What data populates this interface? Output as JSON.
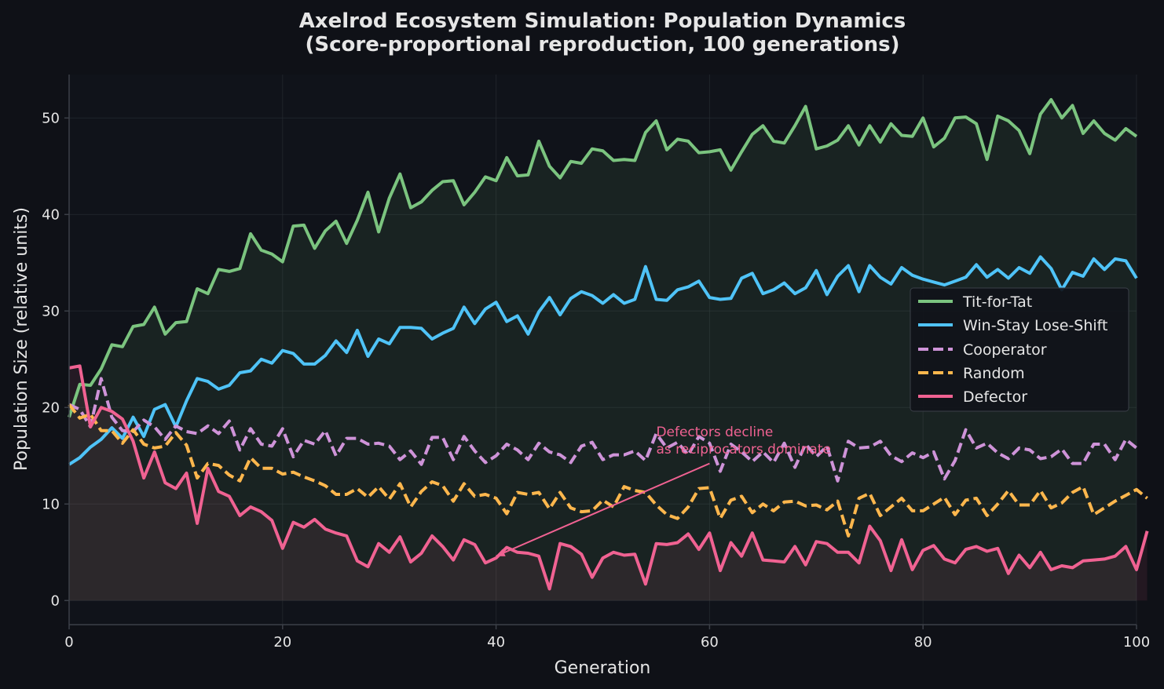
{
  "colors": {
    "background": "#0f1117",
    "plot_background": "#10131a",
    "grid": "#2a2e36",
    "axis": "#3c4048",
    "text": "#e6e6e6",
    "tft": "#7bc47f",
    "wsls": "#4fc3f7",
    "cooperator": "#ce93d8",
    "random": "#ffb74d",
    "defector": "#f06292"
  },
  "chart_data": {
    "type": "line",
    "title": "Axelrod Ecosystem Simulation: Population Dynamics",
    "subtitle": "(Score-proportional reproduction, 100 generations)",
    "xlabel": "Generation",
    "ylabel": "Population Size (relative units)",
    "xlim": [
      0,
      100
    ],
    "ylim": [
      -2.5,
      54.5
    ],
    "xticks": [
      0,
      20,
      40,
      60,
      80,
      100
    ],
    "yticks": [
      0,
      10,
      20,
      30,
      40,
      50
    ],
    "grid": true,
    "legend_position": "center-right",
    "annotation": {
      "text_lines": [
        "Defectors decline",
        "as reciprocators dominate"
      ],
      "text_at": [
        55,
        17
      ],
      "arrow_to": [
        40,
        4.6
      ],
      "arrow_from": [
        60,
        14.2
      ]
    },
    "series": [
      {
        "name": "Tit-for-Tat",
        "style": "solid",
        "color": "#7bc47f",
        "fill": true,
        "values": [
          19.0,
          22.4,
          22.3,
          24.0,
          26.5,
          26.3,
          28.4,
          28.6,
          30.4,
          27.6,
          28.8,
          28.9,
          32.3,
          31.8,
          34.3,
          34.1,
          34.4,
          38.0,
          36.3,
          35.9,
          35.1,
          38.8,
          38.9,
          36.5,
          38.3,
          39.3,
          37.0,
          39.4,
          42.3,
          38.2,
          41.7,
          44.2,
          40.7,
          41.3,
          42.5,
          43.4,
          43.5,
          41.0,
          42.3,
          43.9,
          43.5,
          45.9,
          44.0,
          44.1,
          47.6,
          45.0,
          43.8,
          45.5,
          45.3,
          46.8,
          46.6,
          45.6,
          45.7,
          45.6,
          48.5,
          49.7,
          46.7,
          47.8,
          47.6,
          46.4,
          46.5,
          46.7,
          44.6,
          46.5,
          48.3,
          49.2,
          47.6,
          47.4,
          49.2,
          51.2,
          46.8,
          47.1,
          47.7,
          49.2,
          47.2,
          49.2,
          47.5,
          49.4,
          48.2,
          48.1,
          50.0,
          47.0,
          47.9,
          50.0,
          50.1,
          49.4,
          45.7,
          50.2,
          49.7,
          48.7,
          46.3,
          50.4,
          51.9,
          50.0,
          51.3,
          48.4,
          49.7,
          48.4,
          47.7,
          48.9,
          48.1
        ]
      },
      {
        "name": "Win-Stay Lose-Shift",
        "style": "solid",
        "color": "#4fc3f7",
        "fill": false,
        "values": [
          14.1,
          14.8,
          15.9,
          16.7,
          17.9,
          16.8,
          19.0,
          17.0,
          19.8,
          20.3,
          18.0,
          20.7,
          23.0,
          22.7,
          21.9,
          22.3,
          23.6,
          23.8,
          25.0,
          24.6,
          25.9,
          25.6,
          24.5,
          24.5,
          25.4,
          26.9,
          25.7,
          28.0,
          25.3,
          27.1,
          26.6,
          28.3,
          28.3,
          28.2,
          27.1,
          27.7,
          28.2,
          30.4,
          28.7,
          30.2,
          30.9,
          28.9,
          29.5,
          27.6,
          29.9,
          31.4,
          29.6,
          31.3,
          32.0,
          31.6,
          30.8,
          31.7,
          30.8,
          31.2,
          34.6,
          31.2,
          31.1,
          32.2,
          32.5,
          33.1,
          31.4,
          31.2,
          31.3,
          33.4,
          33.9,
          31.8,
          32.2,
          32.9,
          31.8,
          32.4,
          34.2,
          31.7,
          33.6,
          34.7,
          32.0,
          34.7,
          33.5,
          32.8,
          34.5,
          33.7,
          33.3,
          33.0,
          32.7,
          33.1,
          33.5,
          34.8,
          33.5,
          34.3,
          33.4,
          34.5,
          33.9,
          35.6,
          34.4,
          32.2,
          34.0,
          33.6,
          35.4,
          34.3,
          35.4,
          35.2,
          33.4
        ]
      },
      {
        "name": "Cooperator",
        "style": "dashed",
        "color": "#ce93d8",
        "fill": false,
        "values": [
          20.3,
          19.8,
          18.0,
          23.0,
          19.0,
          17.6,
          17.5,
          18.7,
          18.0,
          16.7,
          18.1,
          17.5,
          17.3,
          18.1,
          17.3,
          18.6,
          15.6,
          17.8,
          16.2,
          16.0,
          17.8,
          14.9,
          16.6,
          16.2,
          17.6,
          15.0,
          16.8,
          16.8,
          16.2,
          16.3,
          16.0,
          14.6,
          15.5,
          14.1,
          16.9,
          16.9,
          14.6,
          17.0,
          15.5,
          14.3,
          15.0,
          16.2,
          15.6,
          14.6,
          16.3,
          15.4,
          15.1,
          14.3,
          16.0,
          16.4,
          14.6,
          15.1,
          15.1,
          15.5,
          14.5,
          17.3,
          15.8,
          16.4,
          15.1,
          17.0,
          16.3,
          13.4,
          16.2,
          15.4,
          14.4,
          15.4,
          14.3,
          16.3,
          13.8,
          16.2,
          14.9,
          16.0,
          12.4,
          16.5,
          15.8,
          15.9,
          16.5,
          15.0,
          14.4,
          15.3,
          14.8,
          15.4,
          12.6,
          14.5,
          17.7,
          15.8,
          16.3,
          15.3,
          14.7,
          15.8,
          15.6,
          14.7,
          14.9,
          15.7,
          14.2,
          14.2,
          16.2,
          16.2,
          14.6,
          16.7,
          15.8
        ]
      },
      {
        "name": "Random",
        "style": "dashed",
        "color": "#ffb74d",
        "fill": false,
        "values": [
          20.3,
          18.9,
          19.3,
          17.6,
          17.6,
          16.3,
          17.7,
          16.2,
          15.8,
          16.0,
          17.4,
          16.1,
          12.7,
          14.2,
          14.0,
          13.0,
          12.4,
          14.8,
          13.7,
          13.7,
          13.1,
          13.3,
          12.8,
          12.4,
          11.9,
          11.0,
          11.0,
          11.6,
          10.7,
          11.8,
          10.5,
          12.1,
          9.7,
          11.3,
          12.3,
          11.9,
          10.3,
          12.1,
          10.8,
          11.0,
          10.6,
          9.0,
          11.2,
          11.0,
          11.2,
          9.5,
          11.2,
          9.6,
          9.2,
          9.3,
          10.4,
          9.7,
          11.8,
          11.4,
          11.2,
          9.9,
          8.9,
          8.5,
          9.7,
          11.6,
          11.7,
          8.5,
          10.4,
          10.8,
          9.1,
          10.0,
          9.3,
          10.2,
          10.3,
          9.8,
          9.9,
          9.4,
          10.3,
          6.7,
          10.6,
          11.1,
          8.8,
          9.7,
          10.6,
          9.3,
          9.3,
          10.0,
          10.7,
          8.9,
          10.4,
          10.6,
          8.8,
          10.0,
          11.4,
          9.9,
          9.9,
          11.4,
          9.6,
          10.1,
          11.2,
          11.8,
          8.9,
          9.6,
          10.3,
          10.9,
          11.5,
          10.6
        ]
      },
      {
        "name": "Defector",
        "style": "solid",
        "color": "#f06292",
        "fill": true,
        "values": [
          24.1,
          24.3,
          18.0,
          20.0,
          19.6,
          18.8,
          16.5,
          12.7,
          15.4,
          12.2,
          11.6,
          13.2,
          8.0,
          13.7,
          11.3,
          10.8,
          8.8,
          9.7,
          9.2,
          8.3,
          5.4,
          8.1,
          7.6,
          8.4,
          7.4,
          7.0,
          6.7,
          4.1,
          3.5,
          5.9,
          5.0,
          6.6,
          4.0,
          4.9,
          6.7,
          5.6,
          4.2,
          6.3,
          5.8,
          3.9,
          4.4,
          5.5,
          5.0,
          4.9,
          4.6,
          1.2,
          5.9,
          5.6,
          4.8,
          2.4,
          4.4,
          5.0,
          4.7,
          4.8,
          1.7,
          5.9,
          5.8,
          6.0,
          6.9,
          5.3,
          7.0,
          3.1,
          6.0,
          4.6,
          7.0,
          4.2,
          4.1,
          4.0,
          5.6,
          3.7,
          6.1,
          5.9,
          5.0,
          5.0,
          3.9,
          7.7,
          6.2,
          3.1,
          6.3,
          3.2,
          5.2,
          5.7,
          4.3,
          3.9,
          5.3,
          5.6,
          5.1,
          5.4,
          2.8,
          4.7,
          3.4,
          5.0,
          3.2,
          3.6,
          3.4,
          4.1,
          4.2,
          4.3,
          4.6,
          5.6,
          3.2,
          7.2
        ]
      }
    ]
  }
}
